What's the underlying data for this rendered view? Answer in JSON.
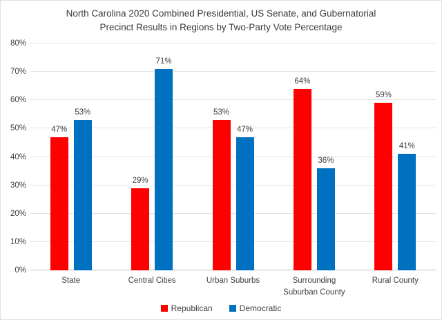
{
  "page": {
    "title_lines": [
      "North Carolina 2020 Combined Presidential, US Senate, and Gubernatorial",
      "Precinct Results in Regions by Two-Party Vote Percentage"
    ]
  },
  "chart_data": {
    "type": "bar",
    "title": "North Carolina 2020 Combined Presidential, US Senate, and Gubernatorial Precinct Results in Regions by Two-Party Vote Percentage",
    "categories": [
      "State",
      "Central Cities",
      "Urban Suburbs",
      "Surrounding Suburban County",
      "Rural County"
    ],
    "series": [
      {
        "name": "Republican",
        "color": "#FF0000",
        "values": [
          47,
          29,
          53,
          64,
          59
        ]
      },
      {
        "name": "Democratic",
        "color": "#0070C0",
        "values": [
          53,
          71,
          47,
          36,
          41
        ]
      }
    ],
    "value_labels": [
      [
        "47%",
        "29%",
        "53%",
        "64%",
        "59%"
      ],
      [
        "53%",
        "71%",
        "47%",
        "36%",
        "41%"
      ]
    ],
    "ylabel": "",
    "xlabel": "",
    "ylim": [
      0,
      80
    ],
    "ytick_step": 10,
    "ytick_labels": [
      "0%",
      "10%",
      "20%",
      "30%",
      "40%",
      "50%",
      "60%",
      "70%",
      "80%"
    ],
    "grid": true,
    "legend_position": "bottom"
  },
  "legend": {
    "items": [
      {
        "label": "Republican",
        "color": "#FF0000"
      },
      {
        "label": "Democratic",
        "color": "#0070C0"
      }
    ]
  }
}
